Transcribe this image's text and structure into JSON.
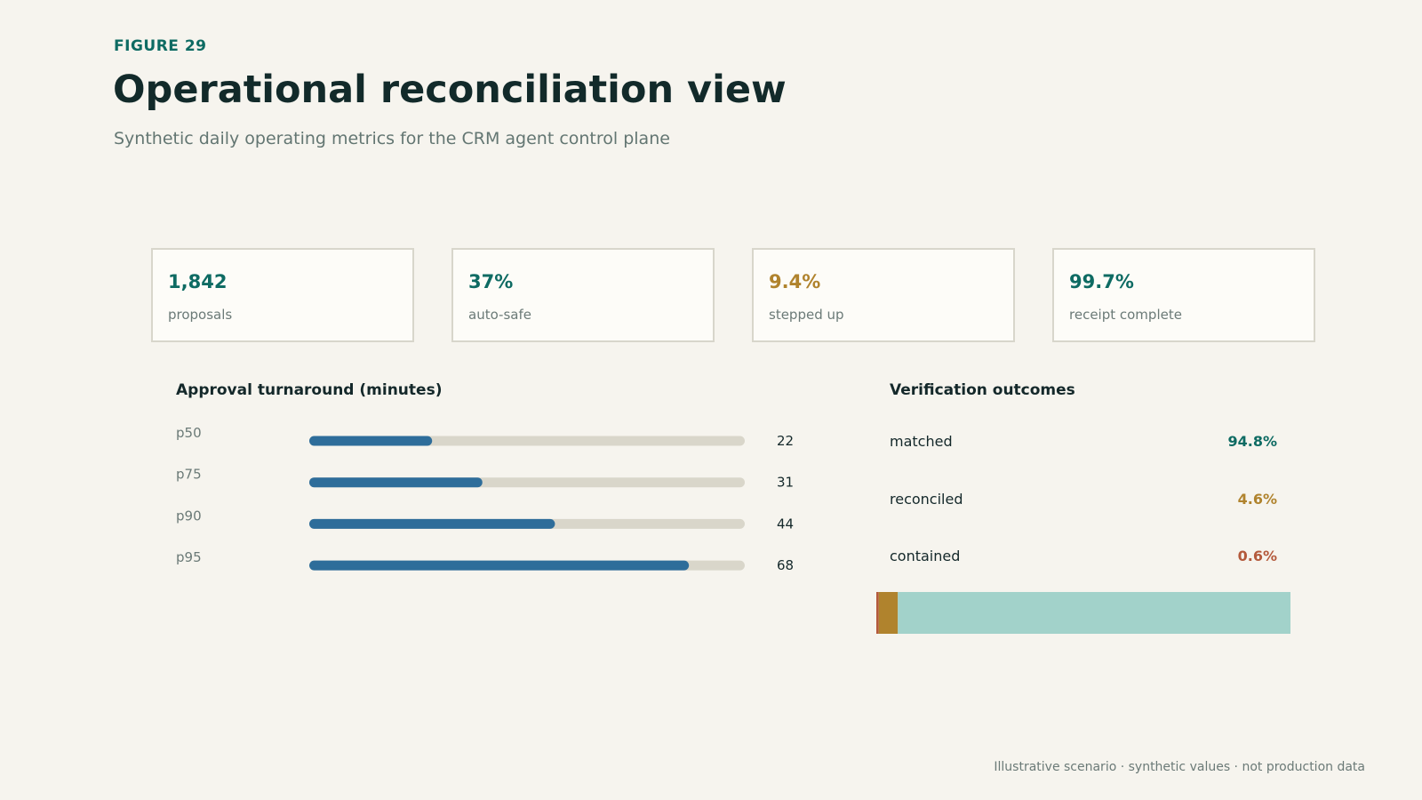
{
  "header": {
    "eyebrow": "FIGURE 29",
    "title": "Operational reconciliation view",
    "subtitle": "Synthetic daily operating metrics for the CRM agent control plane"
  },
  "kpis": [
    {
      "value": "1,842",
      "label": "proposals",
      "color": "#0e6b63"
    },
    {
      "value": "37%",
      "label": "auto-safe",
      "color": "#0e6b63"
    },
    {
      "value": "9.4%",
      "label": "stepped up",
      "color": "#b0832d"
    },
    {
      "value": "99.7%",
      "label": "receipt complete",
      "color": "#0e6b63"
    }
  ],
  "chart_data": [
    {
      "type": "bar",
      "orientation": "horizontal",
      "title": "Approval turnaround (minutes)",
      "categories": [
        "p50",
        "p75",
        "p90",
        "p95"
      ],
      "values": [
        22,
        31,
        44,
        68
      ],
      "xlim": [
        0,
        78
      ],
      "bar_color": "#2e6d9a",
      "track_color": "#d9d6ca"
    },
    {
      "type": "bar",
      "orientation": "stacked-horizontal",
      "title": "Verification outcomes",
      "categories": [
        "matched",
        "reconciled",
        "contained"
      ],
      "values": [
        94.8,
        4.6,
        0.6
      ],
      "value_labels": [
        "94.8%",
        "4.6%",
        "0.6%"
      ],
      "label_colors": [
        "#0e6b63",
        "#b0832d",
        "#b45a3c"
      ],
      "bar_colors": [
        "#a2d2ca",
        "#b0832d",
        "#b45a3c"
      ]
    }
  ],
  "footer": "Illustrative scenario · synthetic values · not production data"
}
